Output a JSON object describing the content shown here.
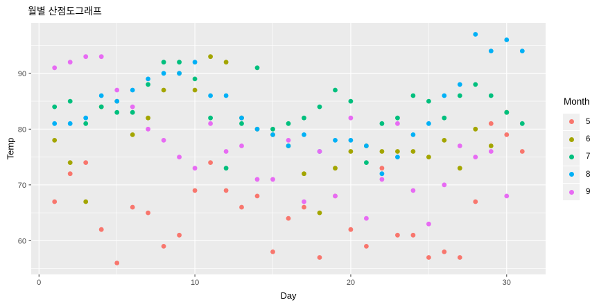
{
  "title": "월별 산점도그래프",
  "chart_data": {
    "type": "scatter",
    "title": "월별 산점도그래프",
    "xlabel": "Day",
    "ylabel": "Temp",
    "legend_title": "Month",
    "legend_position": "right",
    "x_ticks": [
      0,
      10,
      20,
      30
    ],
    "y_ticks": [
      60,
      70,
      80,
      90
    ],
    "x_minor_gridlines": [
      5,
      15,
      25
    ],
    "y_minor_gridlines": [
      55,
      65,
      75,
      85,
      95
    ],
    "xlim": [
      -0.5,
      32.5
    ],
    "ylim": [
      53.95,
      99.05
    ],
    "grid": "on",
    "x_note": "x value = day of month = array index + 1",
    "series": [
      {
        "name": "5",
        "color": "#F8766D",
        "temps": [
          67,
          72,
          74,
          62,
          56,
          66,
          65,
          59,
          61,
          69,
          74,
          69,
          66,
          68,
          58,
          64,
          66,
          57,
          68,
          62,
          59,
          73,
          61,
          61,
          57,
          58,
          57,
          67,
          81,
          79,
          76
        ]
      },
      {
        "name": "6",
        "color": "#A3A500",
        "temps": [
          78,
          74,
          67,
          84,
          85,
          79,
          82,
          87,
          90,
          87,
          93,
          92,
          82,
          80,
          79,
          77,
          72,
          65,
          73,
          76,
          77,
          76,
          76,
          76,
          75,
          78,
          73,
          80,
          77,
          83
        ]
      },
      {
        "name": "7",
        "color": "#00BF7D",
        "temps": [
          84,
          85,
          81,
          84,
          83,
          83,
          88,
          92,
          92,
          89,
          82,
          73,
          81,
          91,
          80,
          81,
          82,
          84,
          87,
          85,
          74,
          81,
          82,
          86,
          85,
          82,
          86,
          88,
          86,
          83,
          81
        ]
      },
      {
        "name": "8",
        "color": "#00B0F6",
        "temps": [
          81,
          81,
          82,
          86,
          85,
          87,
          89,
          90,
          90,
          92,
          86,
          86,
          82,
          80,
          79,
          77,
          79,
          76,
          78,
          78,
          77,
          72,
          75,
          79,
          81,
          86,
          88,
          97,
          94,
          96,
          94
        ]
      },
      {
        "name": "9",
        "color": "#E76BF3",
        "temps": [
          91,
          92,
          93,
          93,
          87,
          84,
          80,
          78,
          75,
          73,
          81,
          76,
          77,
          71,
          71,
          78,
          67,
          76,
          68,
          82,
          64,
          71,
          81,
          69,
          63,
          70,
          77,
          75,
          76,
          68
        ]
      }
    ],
    "style": {
      "panel_bg": "#EBEBEB",
      "grid_color": "#FFFFFF",
      "legend_key_bg": "#F0F0F0",
      "tick_label_color": "#4D4D4D",
      "tick_mark_color": "#333333",
      "point_radius": 3.4
    }
  }
}
